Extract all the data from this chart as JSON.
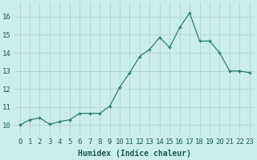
{
  "x": [
    0,
    1,
    2,
    3,
    4,
    5,
    6,
    7,
    8,
    9,
    10,
    11,
    12,
    13,
    14,
    15,
    16,
    17,
    18,
    19,
    20,
    21,
    22,
    23
  ],
  "y": [
    10.0,
    10.3,
    10.4,
    10.05,
    10.2,
    10.3,
    10.65,
    10.65,
    10.65,
    11.05,
    12.1,
    12.9,
    13.8,
    14.2,
    14.85,
    14.3,
    15.4,
    16.2,
    14.65,
    14.65,
    14.0,
    13.0,
    13.0,
    12.9
  ],
  "line_color": "#2e7d6e",
  "marker": "+",
  "marker_size": 3,
  "marker_linewidth": 1.0,
  "bg_color": "#cceee8",
  "grid_color": "#b0d4ce",
  "xlabel": "Humidex (Indice chaleur)",
  "xlim": [
    -0.5,
    23.5
  ],
  "ylim": [
    9.5,
    16.8
  ],
  "yticks": [
    10,
    11,
    12,
    13,
    14,
    15,
    16
  ],
  "xtick_labels": [
    "0",
    "1",
    "2",
    "3",
    "4",
    "5",
    "6",
    "7",
    "8",
    "9",
    "10",
    "11",
    "12",
    "13",
    "14",
    "15",
    "16",
    "17",
    "18",
    "19",
    "20",
    "21",
    "22",
    "23"
  ],
  "xlabel_fontsize": 7,
  "tick_fontsize": 6.5,
  "label_color": "#1a5c50"
}
